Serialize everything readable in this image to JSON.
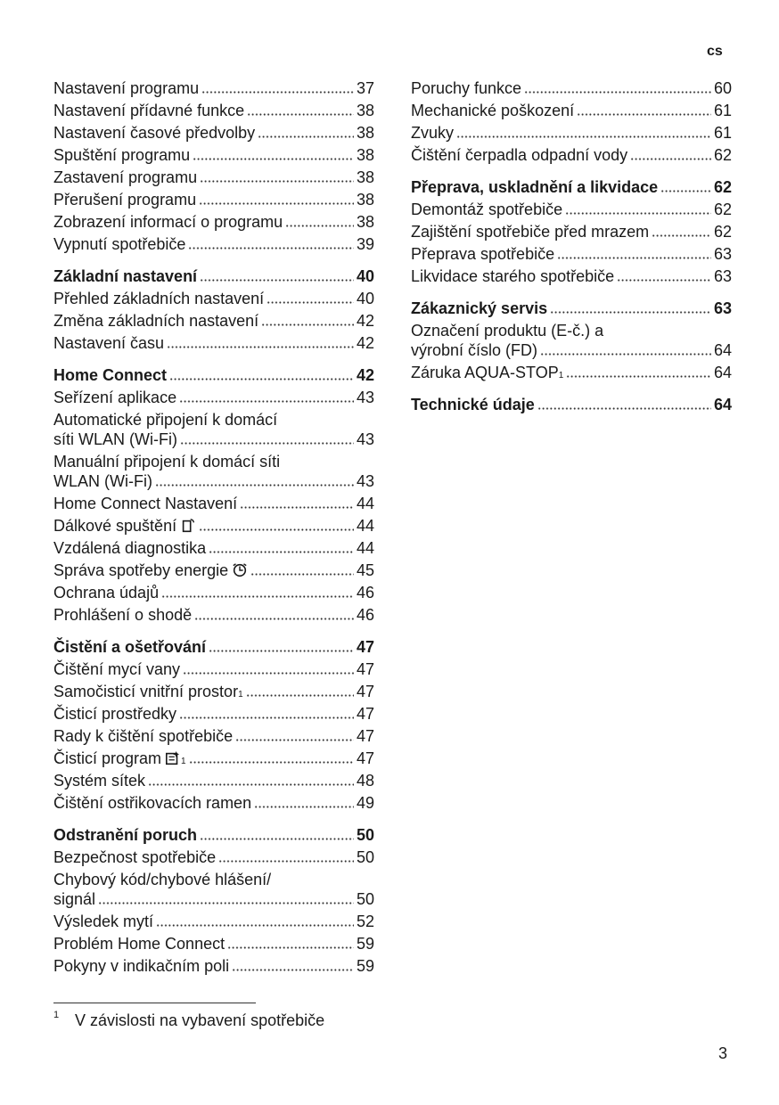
{
  "header": {
    "language": "cs"
  },
  "columns": [
    {
      "sections": [
        {
          "items": [
            {
              "lines": [
                "Nastavení programu"
              ],
              "page": 37
            },
            {
              "lines": [
                "Nastavení přídavné funkce"
              ],
              "page": 38
            },
            {
              "lines": [
                "Nastavení časové předvolby"
              ],
              "page": 38
            },
            {
              "lines": [
                "Spuštění programu"
              ],
              "page": 38
            },
            {
              "lines": [
                "Zastavení programu"
              ],
              "page": 38
            },
            {
              "lines": [
                "Přerušení programu"
              ],
              "page": 38
            },
            {
              "lines": [
                "Zobrazení informací o programu"
              ],
              "page": 38
            },
            {
              "lines": [
                "Vypnutí spotřebiče"
              ],
              "page": 39
            }
          ]
        },
        {
          "heading": {
            "lines": [
              "Základní nastavení"
            ],
            "page": 40
          },
          "items": [
            {
              "lines": [
                "Přehled základních nastavení"
              ],
              "page": 40
            },
            {
              "lines": [
                "Změna základních nastavení"
              ],
              "page": 42
            },
            {
              "lines": [
                "Nastavení času"
              ],
              "page": 42
            }
          ]
        },
        {
          "heading": {
            "lines": [
              "Home Connect"
            ],
            "page": 42
          },
          "items": [
            {
              "lines": [
                "Seřízení aplikace"
              ],
              "page": 43
            },
            {
              "lines": [
                "Automatické připojení k domácí",
                "síti WLAN (Wi-Fi)"
              ],
              "page": 43
            },
            {
              "lines": [
                "Manuální připojení k domácí síti",
                "WLAN (Wi-Fi)"
              ],
              "page": 43
            },
            {
              "lines": [
                "Home Connect Nastavení"
              ],
              "page": 44
            },
            {
              "lines": [
                "Dálkové spuštění"
              ],
              "page": 44,
              "icon": "remote-start"
            },
            {
              "lines": [
                "Vzdálená diagnostika"
              ],
              "page": 44
            },
            {
              "lines": [
                "Správa spotřeby energie"
              ],
              "page": 45,
              "icon": "energy"
            },
            {
              "lines": [
                "Ochrana údajů"
              ],
              "page": 46
            },
            {
              "lines": [
                "Prohlášení o shodě"
              ],
              "page": 46
            }
          ]
        },
        {
          "heading": {
            "lines": [
              "Čistění a ošetřování"
            ],
            "page": 47
          },
          "items": [
            {
              "lines": [
                "Čištění mycí vany"
              ],
              "page": 47
            },
            {
              "lines": [
                "Samočisticí vnitřní prostor"
              ],
              "page": 47,
              "sup": "1"
            },
            {
              "lines": [
                "Čisticí prostředky"
              ],
              "page": 47
            },
            {
              "lines": [
                "Rady k čištění spotřebiče"
              ],
              "page": 47
            },
            {
              "lines": [
                "Čisticí program"
              ],
              "page": 47,
              "icon": "cleaning",
              "sup": "1"
            },
            {
              "lines": [
                "Systém sítek"
              ],
              "page": 48
            },
            {
              "lines": [
                "Čištění ostřikovacích ramen"
              ],
              "page": 49
            }
          ]
        },
        {
          "heading": {
            "lines": [
              "Odstranění poruch"
            ],
            "page": 50
          },
          "items": [
            {
              "lines": [
                "Bezpečnost spotřebiče"
              ],
              "page": 50
            },
            {
              "lines": [
                "Chybový kód/chybové hlášení/",
                "signál"
              ],
              "page": 50
            },
            {
              "lines": [
                "Výsledek mytí"
              ],
              "page": 52
            },
            {
              "lines": [
                "Problém Home Connect"
              ],
              "page": 59
            },
            {
              "lines": [
                "Pokyny v indikačním poli"
              ],
              "page": 59
            }
          ]
        }
      ]
    },
    {
      "sections": [
        {
          "items": [
            {
              "lines": [
                "Poruchy funkce"
              ],
              "page": 60
            },
            {
              "lines": [
                "Mechanické poškození"
              ],
              "page": 61
            },
            {
              "lines": [
                "Zvuky"
              ],
              "page": 61
            },
            {
              "lines": [
                "Čištění čerpadla odpadní vody"
              ],
              "page": 62
            }
          ]
        },
        {
          "heading": {
            "lines": [
              "Přeprava, uskladnění a likvidace"
            ],
            "page": 62
          },
          "items": [
            {
              "lines": [
                "Demontáž spotřebiče"
              ],
              "page": 62
            },
            {
              "lines": [
                "Zajištění spotřebiče před mrazem"
              ],
              "page": 62
            },
            {
              "lines": [
                "Přeprava spotřebiče"
              ],
              "page": 63
            },
            {
              "lines": [
                "Likvidace starého spotřebiče"
              ],
              "page": 63
            }
          ]
        },
        {
          "heading": {
            "lines": [
              "Zákaznický servis"
            ],
            "page": 63
          },
          "items": [
            {
              "lines": [
                "Označení produktu (E-č.) a",
                "výrobní číslo (FD)"
              ],
              "page": 64
            },
            {
              "lines": [
                "Záruka AQUA-STOP"
              ],
              "page": 64,
              "sup": "1"
            }
          ]
        },
        {
          "heading": {
            "lines": [
              "Technické údaje"
            ],
            "page": 64
          },
          "items": []
        }
      ]
    }
  ],
  "footnote": {
    "marker": "1",
    "text": "V závislosti na vybavení spotřebiče"
  },
  "page_number": 3
}
